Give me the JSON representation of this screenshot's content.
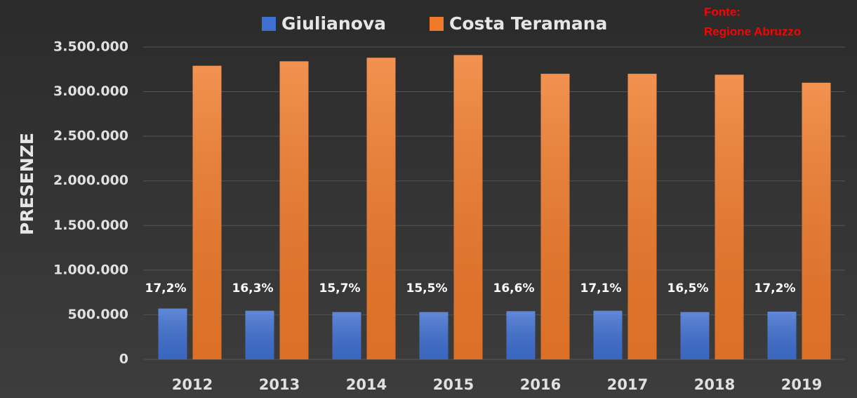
{
  "chart_data": {
    "type": "bar",
    "categories": [
      "2012",
      "2013",
      "2014",
      "2015",
      "2016",
      "2017",
      "2018",
      "2019"
    ],
    "series": [
      {
        "name": "Giulianova",
        "color": "#3f6fd0",
        "values": [
          570000,
          545000,
          530000,
          530000,
          540000,
          545000,
          530000,
          535000
        ]
      },
      {
        "name": "Costa Teramana",
        "color": "#f07a2a",
        "values": [
          3290000,
          3340000,
          3380000,
          3410000,
          3200000,
          3200000,
          3190000,
          3100000
        ]
      }
    ],
    "annotations": [
      "17,2%",
      "16,3%",
      "15,7%",
      "15,5%",
      "16,6%",
      "17,1%",
      "16,5%",
      "17,2%"
    ],
    "source": [
      "Fonte:",
      "Regione Abruzzo"
    ],
    "y_label": "PRESENZE",
    "ylim": [
      0,
      3500000
    ],
    "yticks": [
      0,
      {
        "value": 500000,
        "label": "500.000"
      },
      {
        "value": 1000000,
        "label": "1.000.000"
      },
      {
        "value": 1500000,
        "label": "1.500.000"
      },
      {
        "value": 2000000,
        "label": "2.000.000"
      },
      {
        "value": 2500000,
        "label": "2.500.000"
      },
      {
        "value": 3000000,
        "label": "3.000.000"
      },
      {
        "value": 3500000,
        "label": "3.500.000"
      }
    ],
    "grid": true,
    "legend": "top"
  }
}
